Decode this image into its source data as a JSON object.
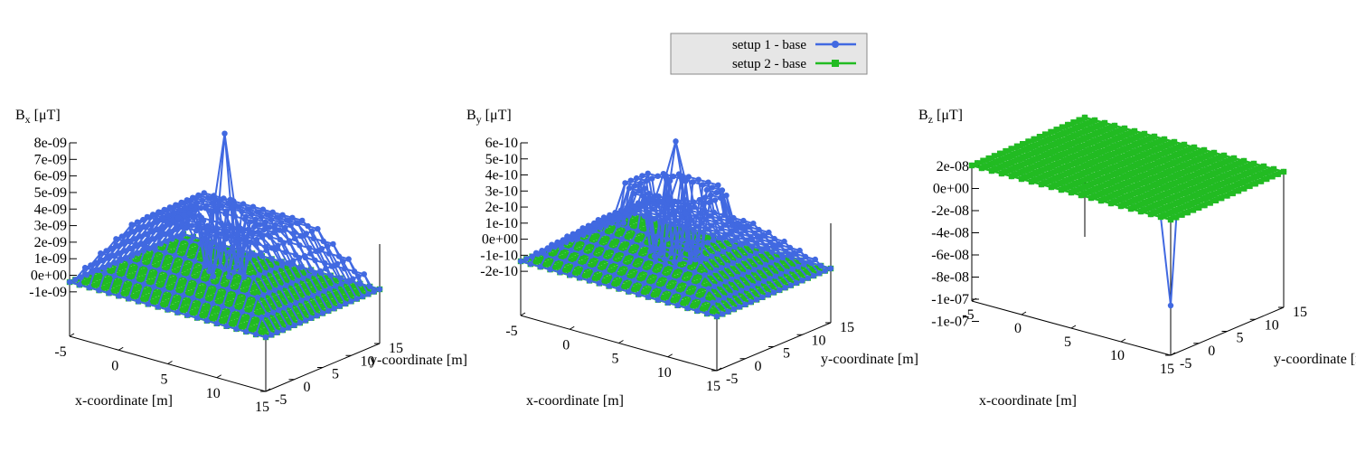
{
  "legend": {
    "entries": [
      {
        "label": "setup 1 - base",
        "color": "#4169e1",
        "marker": "circle"
      },
      {
        "label": "setup 2 - base",
        "color": "#22bb22",
        "marker": "square"
      }
    ],
    "background": "#e6e6e6"
  },
  "colors": {
    "setup1": "#4169e1",
    "setup2": "#22bb22",
    "axis": "#000000"
  },
  "chart_data": [
    {
      "type": "surface",
      "title_base": "B",
      "title_sub": "x",
      "title_unit": "[μT]",
      "xlabel": "x-coordinate [m]",
      "ylabel": "y-coordinate [m]",
      "x_range": [
        -5,
        15
      ],
      "y_range": [
        -5,
        15
      ],
      "x_ticks": [
        "-5",
        "0",
        "5",
        "10",
        "15"
      ],
      "y_ticks": [
        "-5",
        "0",
        "5",
        "10",
        "15"
      ],
      "z_range": [
        -1.5e-09,
        8e-09
      ],
      "z_ticks": [
        {
          "v": 8e-09,
          "label": "8e-09"
        },
        {
          "v": 7e-09,
          "label": "7e-09"
        },
        {
          "v": 6e-09,
          "label": "6e-09"
        },
        {
          "v": 5e-09,
          "label": "5e-09"
        },
        {
          "v": 4e-09,
          "label": "4e-09"
        },
        {
          "v": 3e-09,
          "label": "3e-09"
        },
        {
          "v": 2e-09,
          "label": "2e-09"
        },
        {
          "v": 1e-09,
          "label": "1e-09"
        },
        {
          "v": 0,
          "label": "0e+00"
        },
        {
          "v": -1e-09,
          "label": "-1e-09"
        }
      ],
      "series": [
        {
          "name": "setup 1 - base",
          "model": "peak",
          "peak": 8.2e-09,
          "plateau": 3.8e-09,
          "center": [
            5,
            5
          ],
          "edge": -2e-10
        },
        {
          "name": "setup 2 - base",
          "model": "flat",
          "value": 0
        }
      ]
    },
    {
      "type": "surface",
      "title_base": "B",
      "title_sub": "y",
      "title_unit": "[μT]",
      "xlabel": "x-coordinate [m]",
      "ylabel": "y-coordinate [m]",
      "x_range": [
        -5,
        15
      ],
      "y_range": [
        -5,
        15
      ],
      "x_ticks": [
        "-5",
        "0",
        "5",
        "10",
        "15"
      ],
      "y_ticks": [
        "-5",
        "0",
        "5",
        "10",
        "15"
      ],
      "z_range": [
        -3e-10,
        6e-10
      ],
      "z_ticks": [
        {
          "v": 6e-10,
          "label": "6e-10"
        },
        {
          "v": 5e-10,
          "label": "5e-10"
        },
        {
          "v": 4e-10,
          "label": "4e-10"
        },
        {
          "v": 3e-10,
          "label": "3e-10"
        },
        {
          "v": 2e-10,
          "label": "2e-10"
        },
        {
          "v": 1e-10,
          "label": "1e-10"
        },
        {
          "v": 0,
          "label": "0e+00"
        },
        {
          "v": -1e-10,
          "label": "-1e-10"
        },
        {
          "v": -2e-10,
          "label": "-2e-10"
        }
      ],
      "series": [
        {
          "name": "setup 1 - base",
          "model": "ring",
          "peak": 6e-10,
          "plateau": 3.5e-10,
          "center": [
            5,
            5
          ],
          "edge": -2e-11
        },
        {
          "name": "setup 2 - base",
          "model": "flat",
          "value": 0
        }
      ]
    },
    {
      "type": "surface",
      "title_base": "B",
      "title_sub": "z",
      "title_unit": "[μT]",
      "xlabel": "x-coordinate [m]",
      "ylabel": "y-coordinate [m]",
      "x_range": [
        -5,
        15
      ],
      "y_range": [
        -5,
        15
      ],
      "x_ticks": [
        "-5",
        "0",
        "5",
        "10",
        "15"
      ],
      "y_ticks": [
        "-5",
        "0",
        "5",
        "10",
        "15"
      ],
      "z_range": [
        -1.2e-07,
        2e-08
      ],
      "z_ticks": [
        {
          "v": 2e-08,
          "label": "2e-08"
        },
        {
          "v": 0,
          "label": "0e+00"
        },
        {
          "v": -2e-08,
          "label": "-2e-08"
        },
        {
          "v": -4e-08,
          "label": "-4e-08"
        },
        {
          "v": -6e-08,
          "label": "-6e-08"
        },
        {
          "v": -8e-08,
          "label": "-8e-08"
        },
        {
          "v": -1e-07,
          "label": "-1e-07"
        },
        {
          "v": -1.2e-07,
          "label": "-1e-07"
        }
      ],
      "series": [
        {
          "name": "setup 1 - base",
          "model": "flat_dip",
          "value": 0,
          "dip": -9.5e-08,
          "dip_at": [
            15,
            -5
          ]
        },
        {
          "name": "setup 2 - base",
          "model": "flat",
          "value": 0
        }
      ]
    }
  ]
}
